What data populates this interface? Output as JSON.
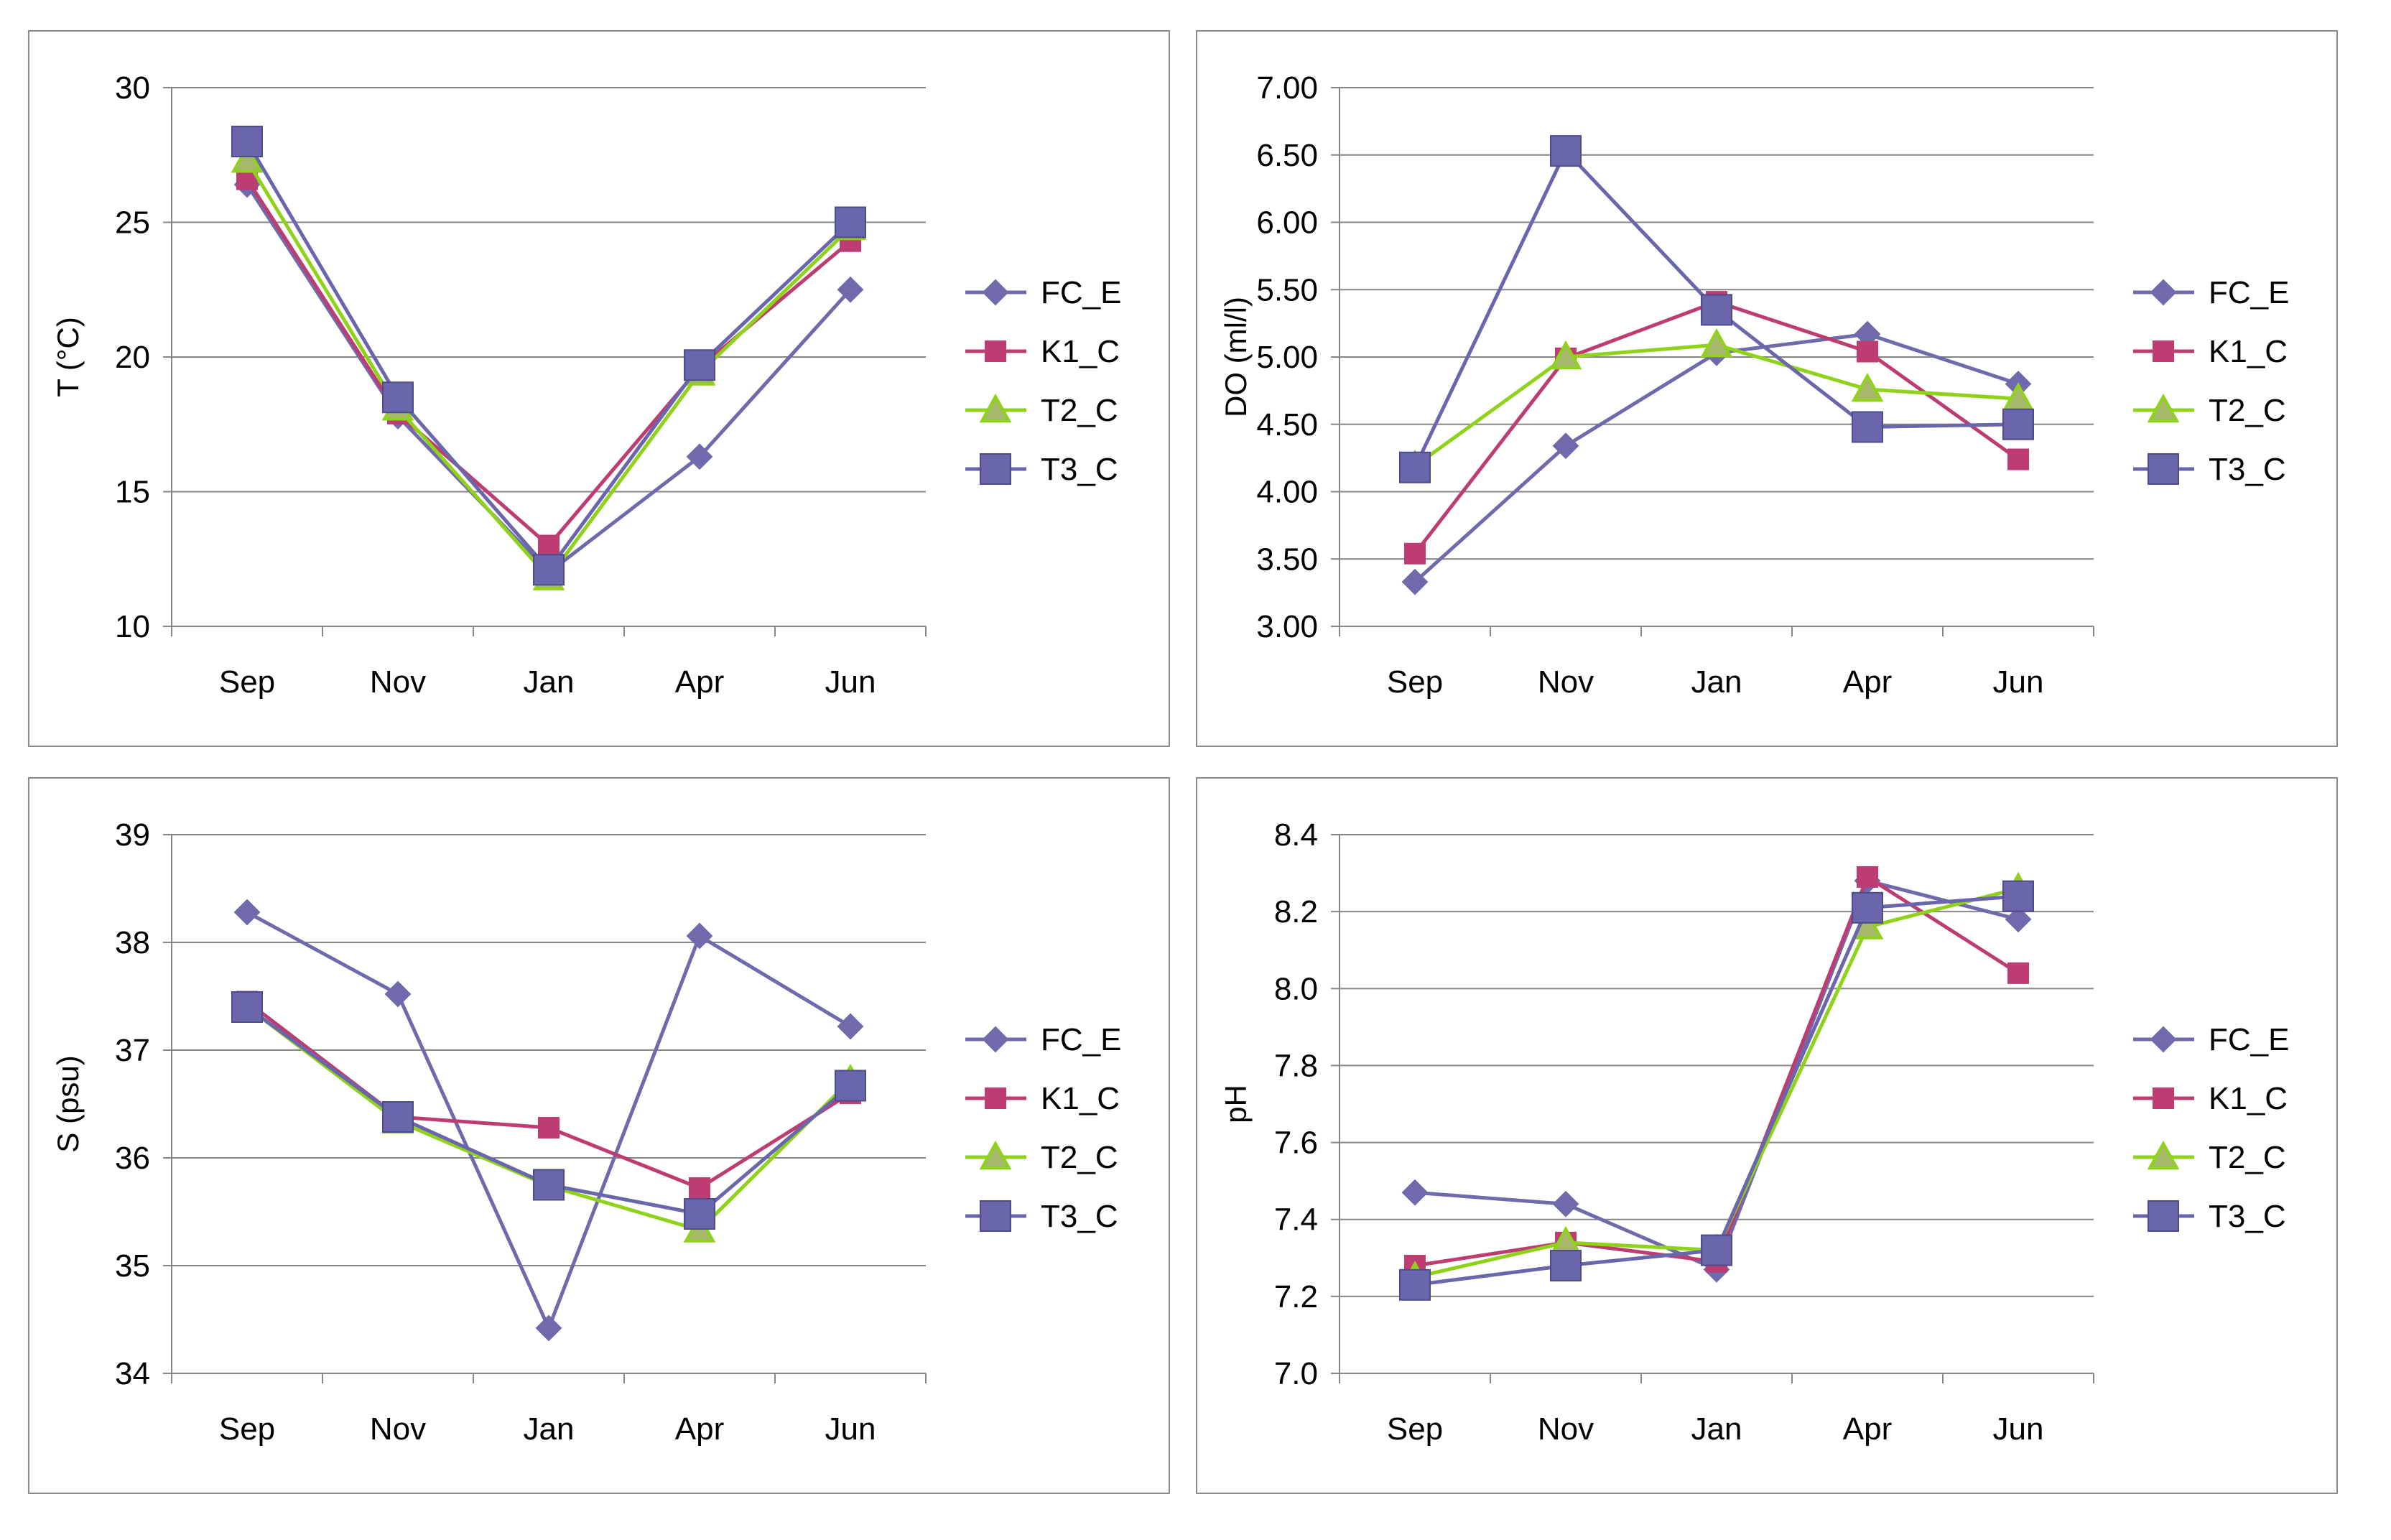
{
  "legend": {
    "position": "right",
    "items": [
      {
        "name": "FC_E",
        "color": "#6f6aab",
        "marker": "diamond"
      },
      {
        "name": "K1_C",
        "color": "#bd3d73",
        "marker": "square"
      },
      {
        "name": "T2_C",
        "color": "#8fd21a",
        "marker": "triangle"
      },
      {
        "name": "T3_C",
        "color": "#6966ab",
        "marker": "square-large"
      }
    ]
  },
  "chart_data": [
    {
      "type": "line",
      "ylabel": "T (°C)",
      "xlabel": "",
      "ylim": [
        10,
        30
      ],
      "yticks": [
        "10",
        "15",
        "20",
        "25",
        "30"
      ],
      "grid": true,
      "categories": [
        "Sep",
        "Nov",
        "Jan",
        "Apr",
        "Jun"
      ],
      "series": [
        {
          "name": "FC_E",
          "values": [
            26.4,
            17.8,
            12.0,
            16.3,
            22.5
          ]
        },
        {
          "name": "K1_C",
          "values": [
            26.6,
            17.9,
            13.0,
            19.6,
            24.3
          ]
        },
        {
          "name": "T2_C",
          "values": [
            27.3,
            18.1,
            11.8,
            19.4,
            24.8
          ]
        },
        {
          "name": "T3_C",
          "values": [
            28.0,
            18.5,
            12.1,
            19.7,
            25.0
          ]
        }
      ]
    },
    {
      "type": "line",
      "ylabel": "DO (ml/l)",
      "xlabel": "",
      "ylim": [
        3.0,
        7.0
      ],
      "yticks": [
        "3.00",
        "3.50",
        "4.00",
        "4.50",
        "5.00",
        "5.50",
        "6.00",
        "6.50",
        "7.00"
      ],
      "grid": true,
      "categories": [
        "Sep",
        "Nov",
        "Jan",
        "Apr",
        "Jun"
      ],
      "series": [
        {
          "name": "FC_E",
          "values": [
            3.33,
            4.34,
            5.03,
            5.17,
            4.8
          ]
        },
        {
          "name": "K1_C",
          "values": [
            3.54,
            4.99,
            5.41,
            5.04,
            4.24
          ]
        },
        {
          "name": "T2_C",
          "values": [
            4.19,
            5.0,
            5.09,
            4.76,
            4.69
          ]
        },
        {
          "name": "T3_C",
          "values": [
            4.18,
            6.53,
            5.35,
            4.48,
            4.5
          ]
        }
      ]
    },
    {
      "type": "line",
      "ylabel": "S (psu)",
      "xlabel": "",
      "ylim": [
        34,
        39
      ],
      "yticks": [
        "34",
        "35",
        "36",
        "37",
        "38",
        "39"
      ],
      "grid": true,
      "categories": [
        "Sep",
        "Nov",
        "Jan",
        "Apr",
        "Jun"
      ],
      "series": [
        {
          "name": "FC_E",
          "values": [
            38.28,
            37.52,
            34.42,
            38.06,
            37.22
          ]
        },
        {
          "name": "K1_C",
          "values": [
            37.45,
            36.38,
            36.28,
            35.72,
            36.6
          ]
        },
        {
          "name": "T2_C",
          "values": [
            37.4,
            36.34,
            35.74,
            35.33,
            36.72
          ]
        },
        {
          "name": "T3_C",
          "values": [
            37.4,
            36.38,
            35.75,
            35.48,
            36.67
          ]
        }
      ]
    },
    {
      "type": "line",
      "ylabel": "pH",
      "xlabel": "",
      "ylim": [
        7.0,
        8.4
      ],
      "yticks": [
        "7.0",
        "7.2",
        "7.4",
        "7.6",
        "7.8",
        "8.0",
        "8.2",
        "8.4"
      ],
      "grid": true,
      "categories": [
        "Sep",
        "Nov",
        "Jan",
        "Apr",
        "Jun"
      ],
      "series": [
        {
          "name": "FC_E",
          "values": [
            7.47,
            7.44,
            7.27,
            8.28,
            8.18
          ]
        },
        {
          "name": "K1_C",
          "values": [
            7.28,
            7.34,
            7.29,
            8.29,
            8.04
          ]
        },
        {
          "name": "T2_C",
          "values": [
            7.25,
            7.34,
            7.32,
            8.16,
            8.26
          ]
        },
        {
          "name": "T3_C",
          "values": [
            7.23,
            7.28,
            7.32,
            8.21,
            8.24
          ]
        }
      ]
    }
  ]
}
